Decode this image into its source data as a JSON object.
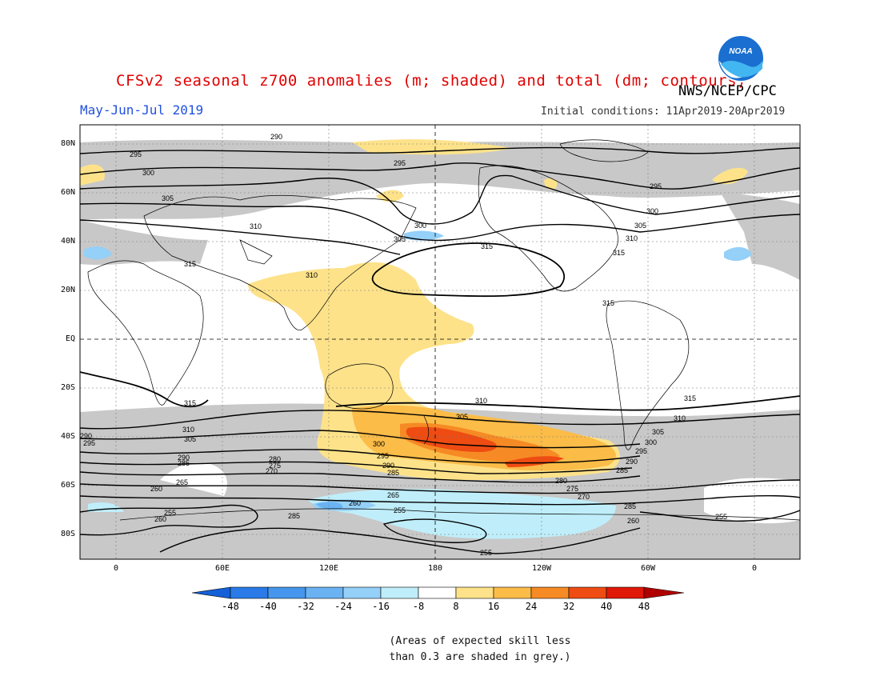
{
  "header": {
    "title": "CFSv2 seasonal z700 anomalies (m; shaded) and total (dm; contours)",
    "season": "May-Jun-Jul 2019",
    "initial_conditions": "Initial conditions: 11Apr2019-20Apr2019",
    "agency": "NWS/NCEP/CPC",
    "logo_text": "NOAA"
  },
  "axes": {
    "lat_labels": [
      "80N",
      "60N",
      "40N",
      "20N",
      "EQ",
      "20S",
      "40S",
      "60S",
      "80S"
    ],
    "lon_labels": [
      "0",
      "60E",
      "120E",
      "180",
      "120W",
      "60W",
      "0"
    ]
  },
  "colorbar": {
    "labels": [
      "-48",
      "-40",
      "-32",
      "-24",
      "-16",
      "-8",
      "8",
      "16",
      "24",
      "32",
      "40",
      "48"
    ],
    "colors": [
      "#1460d8",
      "#2a7ae8",
      "#4596ec",
      "#6ab2f2",
      "#94d0f8",
      "#bfeefa",
      "#ffffff",
      "#fde28a",
      "#fbbc48",
      "#f68a24",
      "#ee4c12",
      "#e01808",
      "#b00000"
    ]
  },
  "contour_labels": [
    "290",
    "295",
    "300",
    "305",
    "310",
    "315",
    "280",
    "275",
    "270",
    "285",
    "265",
    "260",
    "255"
  ],
  "note": {
    "line1": "(Areas of expected skill less",
    "line2": "than 0.3 are shaded in grey.)"
  },
  "colors": {
    "skill_grey": "#c8c8c8",
    "title_red": "#e00000",
    "season_blue": "#2050e0"
  }
}
